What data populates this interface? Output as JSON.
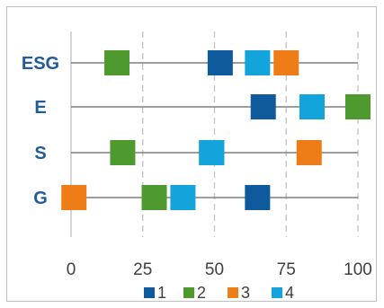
{
  "chart_data": {
    "type": "scatter",
    "categories": [
      "ESG",
      "E",
      "S",
      "G"
    ],
    "xlim": [
      0,
      100
    ],
    "xticks": [
      "0",
      "25",
      "50",
      "75",
      "100"
    ],
    "grid": "vertical-dashed",
    "legend_position": "bottom",
    "series": [
      {
        "name": "1",
        "color": "#0f5a9c",
        "values": [
          52,
          67,
          49,
          65
        ]
      },
      {
        "name": "2",
        "color": "#4e9a2f",
        "values": [
          16,
          100,
          18,
          29
        ]
      },
      {
        "name": "3",
        "color": "#ee7d18",
        "values": [
          75,
          84,
          83,
          1
        ]
      },
      {
        "name": "4",
        "color": "#14a4dc",
        "values": [
          65,
          84,
          49,
          39
        ]
      }
    ]
  }
}
